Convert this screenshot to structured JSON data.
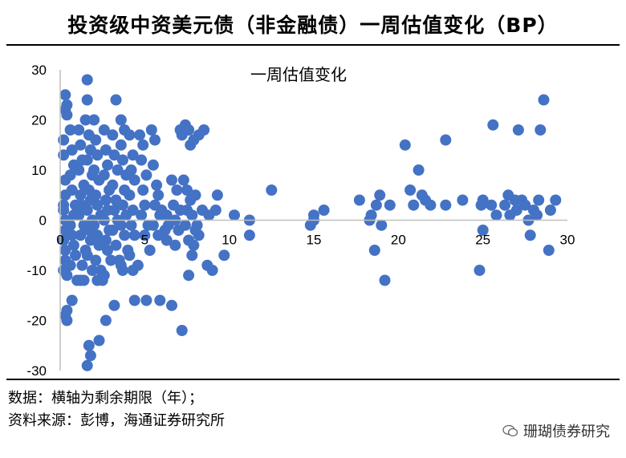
{
  "title": "投资级中资美元债（非金融债）一周估值变化（BP）",
  "footnote1": "数据：横轴为剩余期限（年）；",
  "footnote2": "资料来源：彭博，海通证券研究所",
  "brand": "珊瑚债券研究",
  "chart_data": {
    "type": "scatter",
    "title": "",
    "legend": "一周估值变化",
    "xlabel": "",
    "ylabel": "",
    "xlim": [
      0,
      30
    ],
    "ylim": [
      -30,
      30
    ],
    "xticks": [
      0,
      5,
      10,
      15,
      20,
      25,
      30
    ],
    "yticks": [
      -30,
      -20,
      -10,
      0,
      10,
      20,
      30
    ],
    "grid": false,
    "color": "#4472C4",
    "series": [
      {
        "name": "一周估值变化",
        "points": [
          [
            0.3,
            25
          ],
          [
            0.3,
            22
          ],
          [
            0.4,
            23
          ],
          [
            0.4,
            21
          ],
          [
            0.2,
            16
          ],
          [
            0.2,
            13
          ],
          [
            0.3,
            8
          ],
          [
            0.3,
            5
          ],
          [
            0.2,
            3
          ],
          [
            0.2,
            2
          ],
          [
            0.3,
            0
          ],
          [
            0.3,
            -2
          ],
          [
            0.2,
            -4
          ],
          [
            0.3,
            -6
          ],
          [
            0.3,
            -8
          ],
          [
            0.2,
            -10
          ],
          [
            0.4,
            -11
          ],
          [
            0.3,
            -19
          ],
          [
            0.4,
            -20
          ],
          [
            0.4,
            -18
          ],
          [
            0.6,
            18
          ],
          [
            0.7,
            14
          ],
          [
            0.8,
            11
          ],
          [
            0.6,
            9
          ],
          [
            0.7,
            6
          ],
          [
            0.9,
            3
          ],
          [
            0.8,
            1
          ],
          [
            0.6,
            -1
          ],
          [
            0.7,
            -3
          ],
          [
            0.8,
            -5
          ],
          [
            0.9,
            -7
          ],
          [
            0.6,
            -9
          ],
          [
            1.0,
            -12
          ],
          [
            0.7,
            -16
          ],
          [
            1.1,
            18
          ],
          [
            1.2,
            15
          ],
          [
            1.3,
            12
          ],
          [
            1.1,
            10
          ],
          [
            1.4,
            7
          ],
          [
            1.2,
            5
          ],
          [
            1.3,
            3
          ],
          [
            1.1,
            1
          ],
          [
            1.4,
            -1
          ],
          [
            1.2,
            -3
          ],
          [
            1.5,
            -6
          ],
          [
            1.3,
            -9
          ],
          [
            1.2,
            -12
          ],
          [
            1.4,
            -12
          ],
          [
            1.6,
            24
          ],
          [
            1.6,
            28
          ],
          [
            1.5,
            20
          ],
          [
            1.7,
            17
          ],
          [
            1.8,
            14
          ],
          [
            1.6,
            12
          ],
          [
            1.9,
            9
          ],
          [
            1.7,
            6
          ],
          [
            1.8,
            4
          ],
          [
            1.6,
            2
          ],
          [
            1.9,
            0
          ],
          [
            1.7,
            -2
          ],
          [
            1.8,
            -4
          ],
          [
            1.6,
            -7
          ],
          [
            1.9,
            -10
          ],
          [
            1.7,
            -25
          ],
          [
            1.8,
            -27
          ],
          [
            1.6,
            -29
          ],
          [
            2.3,
            -24
          ],
          [
            2.0,
            20
          ],
          [
            2.1,
            16
          ],
          [
            2.2,
            13
          ],
          [
            2.0,
            10
          ],
          [
            2.3,
            8
          ],
          [
            2.1,
            5
          ],
          [
            2.2,
            3
          ],
          [
            2.4,
            1
          ],
          [
            2.0,
            -1
          ],
          [
            2.2,
            -3
          ],
          [
            2.3,
            -5
          ],
          [
            2.1,
            -8
          ],
          [
            2.4,
            -10
          ],
          [
            2.5,
            -12
          ],
          [
            2.2,
            -12
          ],
          [
            2.6,
            18
          ],
          [
            2.7,
            14
          ],
          [
            2.8,
            11
          ],
          [
            2.6,
            9
          ],
          [
            2.9,
            6
          ],
          [
            2.7,
            4
          ],
          [
            2.8,
            2
          ],
          [
            2.6,
            0
          ],
          [
            2.9,
            -2
          ],
          [
            2.7,
            -4
          ],
          [
            2.8,
            -6
          ],
          [
            3.0,
            -8
          ],
          [
            2.6,
            -11
          ],
          [
            2.7,
            -20
          ],
          [
            3.2,
            -17
          ],
          [
            3.3,
            24
          ],
          [
            3.1,
            17
          ],
          [
            3.2,
            13
          ],
          [
            3.4,
            10
          ],
          [
            3.1,
            7
          ],
          [
            3.3,
            4
          ],
          [
            3.2,
            2
          ],
          [
            3.4,
            0
          ],
          [
            3.1,
            -2
          ],
          [
            3.3,
            -5
          ],
          [
            3.5,
            -8
          ],
          [
            3.6,
            -9
          ],
          [
            3.6,
            20
          ],
          [
            3.8,
            18
          ],
          [
            3.6,
            15
          ],
          [
            3.7,
            12
          ],
          [
            3.9,
            9
          ],
          [
            3.8,
            6
          ],
          [
            3.7,
            3
          ],
          [
            3.9,
            1
          ],
          [
            3.6,
            -1
          ],
          [
            3.8,
            -3
          ],
          [
            4.0,
            -6
          ],
          [
            3.7,
            -10
          ],
          [
            4.1,
            17
          ],
          [
            4.3,
            13
          ],
          [
            4.2,
            10
          ],
          [
            4.4,
            8
          ],
          [
            4.1,
            5
          ],
          [
            4.3,
            2
          ],
          [
            4.2,
            -1
          ],
          [
            4.4,
            -3
          ],
          [
            4.1,
            -7
          ],
          [
            4.6,
            -9
          ],
          [
            4.4,
            -16
          ],
          [
            4.3,
            -10
          ],
          [
            4.7,
            17
          ],
          [
            4.9,
            15
          ],
          [
            4.8,
            12
          ],
          [
            5.1,
            9
          ],
          [
            4.9,
            6
          ],
          [
            5.0,
            3
          ],
          [
            4.8,
            1
          ],
          [
            5.2,
            -1
          ],
          [
            5.0,
            -3
          ],
          [
            5.3,
            -6
          ],
          [
            5.1,
            -16
          ],
          [
            5.4,
            18
          ],
          [
            5.6,
            16
          ],
          [
            5.5,
            11
          ],
          [
            5.7,
            7
          ],
          [
            5.8,
            5
          ],
          [
            5.6,
            3
          ],
          [
            5.9,
            1
          ],
          [
            5.5,
            -1
          ],
          [
            5.8,
            -3
          ],
          [
            6.0,
            2
          ],
          [
            6.3,
            1
          ],
          [
            6.2,
            -2
          ],
          [
            6.4,
            -1
          ],
          [
            5.9,
            -16
          ],
          [
            6.6,
            -17
          ],
          [
            6.3,
            -4
          ],
          [
            6.6,
            8
          ],
          [
            6.9,
            6
          ],
          [
            6.7,
            3
          ],
          [
            7.1,
            2
          ],
          [
            6.8,
            0
          ],
          [
            7.0,
            -2
          ],
          [
            6.8,
            -5
          ],
          [
            7.1,
            18
          ],
          [
            7.2,
            17
          ],
          [
            7.4,
            19
          ],
          [
            7.6,
            18
          ],
          [
            7.3,
            8
          ],
          [
            7.5,
            6
          ],
          [
            7.7,
            4
          ],
          [
            7.5,
            2
          ],
          [
            7.4,
            -1
          ],
          [
            7.6,
            -4
          ],
          [
            7.2,
            -22
          ],
          [
            7.7,
            15
          ],
          [
            7.9,
            16
          ],
          [
            8.2,
            17
          ],
          [
            8.5,
            18
          ],
          [
            7.8,
            1
          ],
          [
            8.0,
            -2
          ],
          [
            7.9,
            -5
          ],
          [
            7.8,
            -7
          ],
          [
            7.6,
            -11
          ],
          [
            8.2,
            -3
          ],
          [
            8.4,
            2
          ],
          [
            8.0,
            5
          ],
          [
            8.1,
            -1
          ],
          [
            8.7,
            -9
          ],
          [
            8.8,
            1
          ],
          [
            9.0,
            -10
          ],
          [
            9.2,
            2
          ],
          [
            9.3,
            5
          ],
          [
            9.7,
            -7
          ],
          [
            10.3,
            1
          ],
          [
            11.2,
            0
          ],
          [
            11.2,
            -3
          ],
          [
            12.5,
            6
          ],
          [
            14.8,
            -1
          ],
          [
            15.0,
            0
          ],
          [
            15.0,
            1
          ],
          [
            15.6,
            2
          ],
          [
            17.7,
            4
          ],
          [
            18.3,
            0
          ],
          [
            18.4,
            1
          ],
          [
            18.7,
            3
          ],
          [
            18.6,
            -6
          ],
          [
            18.9,
            5
          ],
          [
            19.2,
            -12
          ],
          [
            19.0,
            -1
          ],
          [
            19.5,
            3
          ],
          [
            20.4,
            15
          ],
          [
            20.7,
            6
          ],
          [
            20.9,
            3
          ],
          [
            21.2,
            10
          ],
          [
            21.4,
            5
          ],
          [
            21.6,
            4
          ],
          [
            21.9,
            3
          ],
          [
            22.8,
            3
          ],
          [
            22.8,
            16
          ],
          [
            23.8,
            4
          ],
          [
            24.9,
            3
          ],
          [
            25.0,
            4
          ],
          [
            24.8,
            -10
          ],
          [
            25.0,
            -2
          ],
          [
            25.5,
            3
          ],
          [
            25.6,
            19
          ],
          [
            25.8,
            1
          ],
          [
            26.3,
            3
          ],
          [
            26.5,
            5
          ],
          [
            26.6,
            1
          ],
          [
            26.9,
            4
          ],
          [
            27.0,
            2
          ],
          [
            27.3,
            4
          ],
          [
            27.1,
            18
          ],
          [
            27.5,
            3
          ],
          [
            27.7,
            0
          ],
          [
            27.8,
            -3
          ],
          [
            28.0,
            2
          ],
          [
            28.2,
            1
          ],
          [
            28.3,
            4
          ],
          [
            28.4,
            18
          ],
          [
            28.6,
            24
          ],
          [
            28.9,
            -6
          ],
          [
            29.0,
            2
          ],
          [
            29.3,
            4
          ]
        ]
      }
    ]
  }
}
